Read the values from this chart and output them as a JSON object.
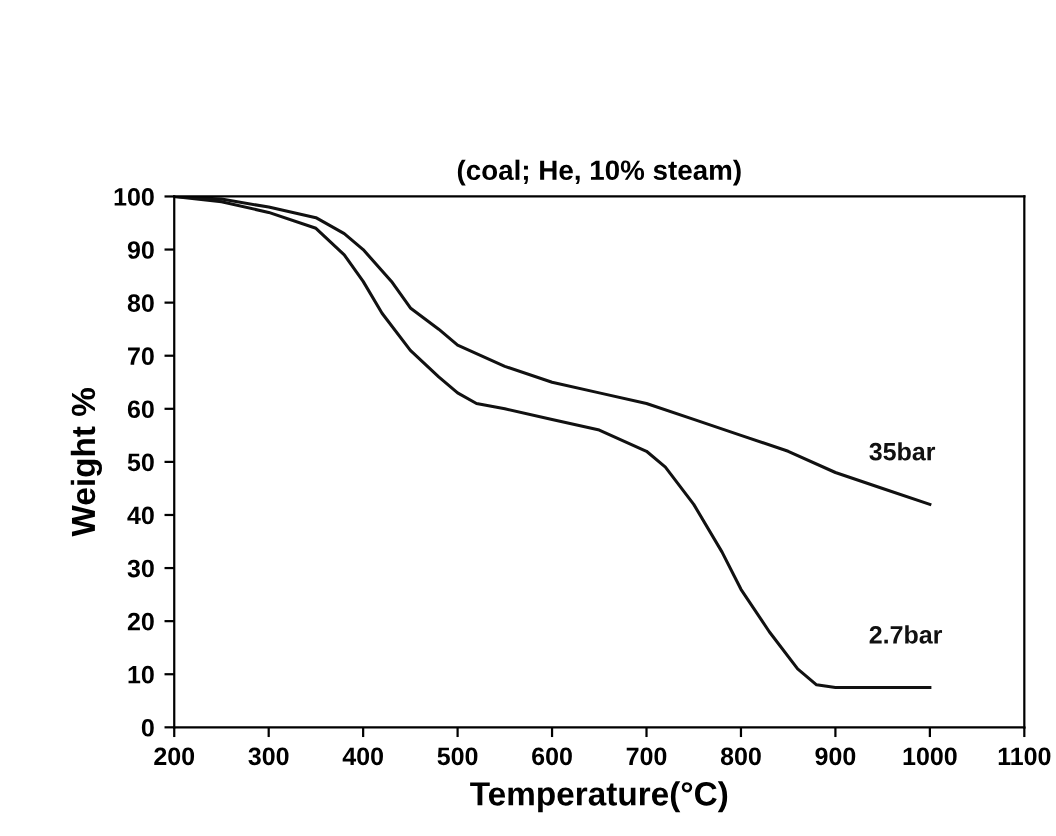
{
  "chart_data": {
    "type": "line",
    "title": "(coal; He, 10% steam)",
    "xlabel": "Temperature(°C)",
    "ylabel": "Weight %",
    "series": [
      {
        "name": "35bar",
        "color": "#111111",
        "x": [
          200,
          250,
          300,
          350,
          380,
          400,
          430,
          450,
          480,
          500,
          550,
          600,
          650,
          700,
          750,
          800,
          850,
          900,
          950,
          1000
        ],
        "values": [
          100,
          99.5,
          98,
          96,
          93,
          90,
          84,
          79,
          75,
          72,
          68,
          65,
          63,
          61,
          58,
          55,
          52,
          48,
          45,
          42
        ]
      },
      {
        "name": "2.7bar",
        "color": "#111111",
        "x": [
          200,
          250,
          300,
          350,
          380,
          400,
          420,
          450,
          480,
          500,
          520,
          550,
          600,
          650,
          700,
          720,
          750,
          780,
          800,
          830,
          860,
          880,
          900,
          950,
          1000
        ],
        "values": [
          100,
          99,
          97,
          94,
          89,
          84,
          78,
          71,
          66,
          63,
          61,
          60,
          58,
          56,
          52,
          49,
          42,
          33,
          26,
          18,
          11,
          8,
          7.5,
          7.5,
          7.5
        ]
      }
    ],
    "xlim": [
      200,
      1100
    ],
    "xticks": [
      200,
      300,
      400,
      500,
      600,
      700,
      800,
      900,
      1000,
      1100
    ],
    "ylim": [
      0,
      100
    ],
    "yticks": [
      0,
      10,
      20,
      30,
      40,
      50,
      60,
      70,
      80,
      90,
      100
    ],
    "grid": false,
    "legend": false,
    "marker": "none",
    "line_style": "solid"
  }
}
